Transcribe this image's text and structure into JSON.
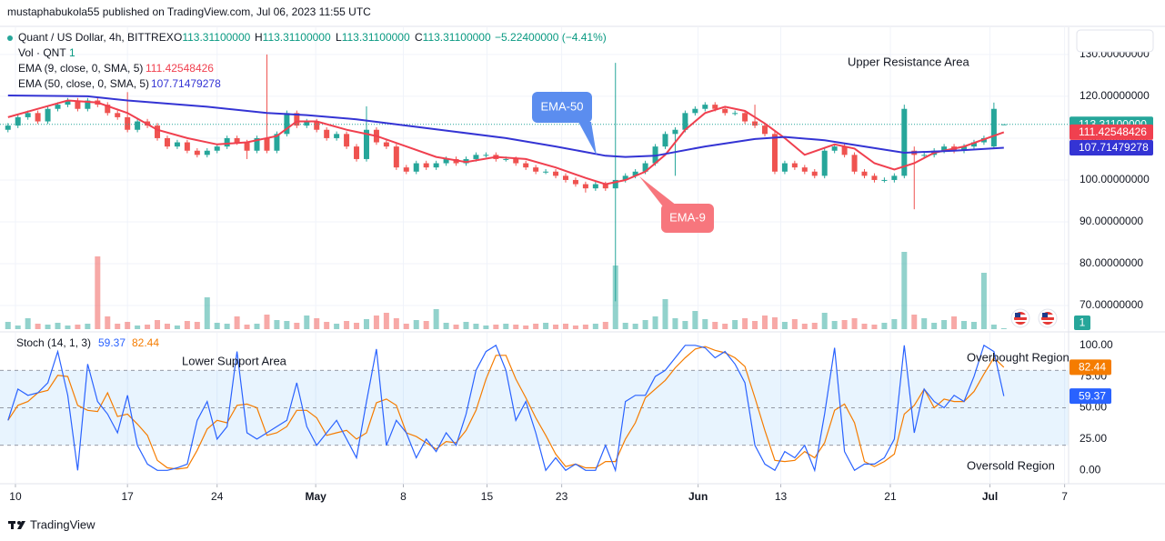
{
  "published": "mustaphabukola55 published on TradingView.com, Jul 06, 2023 11:55 UTC",
  "header": {
    "title": "Quant / US Dollar, 4h, BITTREX",
    "ohlc": [
      {
        "key": "O",
        "value": "113.31100000"
      },
      {
        "key": "H",
        "value": "113.31100000"
      },
      {
        "key": "L",
        "value": "113.31100000"
      },
      {
        "key": "C",
        "value": "113.31100000"
      }
    ],
    "change": "−5.22400000 (−4.41%)",
    "volume_label": "Vol · QNT"
  },
  "chart_data": {
    "type": "candlestick",
    "xlim": [
      -0.8,
      106.5
    ],
    "xticks": [
      {
        "value": 0.75,
        "label": "10"
      },
      {
        "value": 12.0,
        "label": "17"
      },
      {
        "value": 21.0,
        "label": "24"
      },
      {
        "value": 30.9,
        "label": "May"
      },
      {
        "value": 39.7,
        "label": "8"
      },
      {
        "value": 48.1,
        "label": "15"
      },
      {
        "value": 55.6,
        "label": "23"
      },
      {
        "value": 69.3,
        "label": "Jun"
      },
      {
        "value": 77.6,
        "label": "13"
      },
      {
        "value": 88.6,
        "label": "21"
      },
      {
        "value": 98.6,
        "label": "Jul"
      },
      {
        "value": 106.1,
        "label": "7"
      }
    ],
    "ylim": [
      64.35,
      136.5
    ],
    "yticks": [
      {
        "value": 130,
        "label": "130.00000000"
      },
      {
        "value": 120,
        "label": "120.00000000"
      },
      {
        "value": 110,
        "label": "110.00000000"
      },
      {
        "value": 100,
        "label": "100.00000000"
      },
      {
        "value": 90,
        "label": "90.00000000"
      },
      {
        "value": 80,
        "label": "80.00000000"
      },
      {
        "value": 70,
        "label": "70.00000000"
      }
    ],
    "grid": true,
    "up_color": "#26a69a",
    "down_color": "#ef5350",
    "last_price": {
      "value": 113.311,
      "label": "113.31100000"
    },
    "candles": [
      [
        112,
        113.6,
        111.4,
        113
      ],
      [
        113,
        115.6,
        112.4,
        115
      ],
      [
        115,
        116.6,
        114.4,
        116
      ],
      [
        116,
        116.6,
        113.4,
        114
      ],
      [
        114,
        117.6,
        113.4,
        117
      ],
      [
        117,
        118.6,
        116.4,
        118
      ],
      [
        118,
        119.6,
        117.4,
        119
      ],
      [
        119,
        119.6,
        116.4,
        117
      ],
      [
        117,
        119.6,
        116.4,
        119
      ],
      [
        119,
        119.6,
        117.4,
        118
      ],
      [
        118,
        118.6,
        115.4,
        116
      ],
      [
        116,
        116.6,
        114.4,
        115
      ],
      [
        115,
        121,
        111.4,
        112
      ],
      [
        112,
        114.6,
        111.4,
        114
      ],
      [
        114,
        114.6,
        112.4,
        113
      ],
      [
        113,
        113.6,
        109.4,
        110
      ],
      [
        110,
        110.6,
        107.4,
        108
      ],
      [
        108,
        109.6,
        107.4,
        109
      ],
      [
        109,
        109.6,
        106.4,
        107
      ],
      [
        107,
        107.6,
        105.4,
        106
      ],
      [
        106,
        107.6,
        105.4,
        107
      ],
      [
        107,
        108.6,
        106.4,
        108
      ],
      [
        108,
        110.6,
        107.4,
        110
      ],
      [
        110,
        110.6,
        108.4,
        109
      ],
      [
        109,
        109.6,
        105,
        107
      ],
      [
        107,
        110.6,
        106.4,
        110
      ],
      [
        110,
        130,
        106.4,
        107
      ],
      [
        107,
        111.6,
        106.4,
        111
      ],
      [
        111,
        116.6,
        110.4,
        116
      ],
      [
        116,
        116.6,
        112.4,
        113
      ],
      [
        113,
        114.6,
        112.4,
        114
      ],
      [
        114,
        114.6,
        111.4,
        112
      ],
      [
        112,
        112.6,
        109.4,
        110
      ],
      [
        110,
        111.6,
        109.4,
        111
      ],
      [
        111,
        111.6,
        107.4,
        108
      ],
      [
        108,
        108.6,
        104.4,
        105
      ],
      [
        105,
        117.6,
        104.4,
        112
      ],
      [
        112,
        112.6,
        108.4,
        109
      ],
      [
        109,
        109.6,
        107.4,
        108
      ],
      [
        108,
        108.6,
        102.4,
        103
      ],
      [
        103,
        103.6,
        101.4,
        102
      ],
      [
        102,
        104.6,
        101.4,
        104
      ],
      [
        104,
        104.6,
        102.4,
        103
      ],
      [
        103,
        104.6,
        102.4,
        104
      ],
      [
        104,
        105.6,
        103.4,
        105
      ],
      [
        105,
        105.6,
        103.4,
        104
      ],
      [
        104,
        105.6,
        103.4,
        105
      ],
      [
        105,
        106.6,
        104.4,
        106
      ],
      [
        106,
        106.6,
        105.4,
        106
      ],
      [
        106,
        106.6,
        104.4,
        105
      ],
      [
        105,
        105.6,
        104.4,
        105
      ],
      [
        105,
        105.6,
        103.4,
        104
      ],
      [
        104,
        104.6,
        102.4,
        103
      ],
      [
        103,
        103.6,
        101.4,
        102
      ],
      [
        102,
        102.6,
        101.4,
        102
      ],
      [
        102,
        102.6,
        100.4,
        101
      ],
      [
        101,
        101.6,
        99.4,
        100
      ],
      [
        100,
        100.6,
        98.4,
        99
      ],
      [
        99,
        99.6,
        97,
        98
      ],
      [
        98,
        99.6,
        97.4,
        99
      ],
      [
        99,
        99.6,
        97.4,
        98
      ],
      [
        98,
        128,
        71,
        100
      ],
      [
        100,
        101.6,
        99.4,
        101
      ],
      [
        101,
        102.6,
        100.4,
        102
      ],
      [
        102,
        104.6,
        101.4,
        104
      ],
      [
        104,
        108.6,
        103.4,
        108
      ],
      [
        108,
        111.6,
        107.4,
        111
      ],
      [
        111,
        112.6,
        101,
        112
      ],
      [
        112,
        116.6,
        111.4,
        116
      ],
      [
        116,
        117.6,
        115.4,
        117
      ],
      [
        117,
        118.6,
        116.4,
        118
      ],
      [
        118,
        118.6,
        116.4,
        117
      ],
      [
        117,
        117.6,
        115.4,
        116
      ],
      [
        116,
        116.6,
        115.4,
        116
      ],
      [
        116,
        116.6,
        113.4,
        114
      ],
      [
        114,
        118,
        112.4,
        113
      ],
      [
        113,
        113.6,
        110.4,
        111
      ],
      [
        111,
        111.6,
        101.4,
        102
      ],
      [
        102,
        104.6,
        101.4,
        104
      ],
      [
        104,
        104.6,
        102.4,
        103
      ],
      [
        103,
        103.6,
        101.4,
        102
      ],
      [
        102,
        102.6,
        100.4,
        101
      ],
      [
        101,
        107.6,
        100.4,
        107
      ],
      [
        107,
        108.6,
        106.4,
        108
      ],
      [
        108,
        108.6,
        105.4,
        106
      ],
      [
        106,
        106.6,
        101.4,
        102
      ],
      [
        102,
        102.6,
        100.4,
        101
      ],
      [
        101,
        101.6,
        99.4,
        100
      ],
      [
        100,
        100.6,
        99.4,
        100
      ],
      [
        100,
        101.6,
        99.4,
        101
      ],
      [
        101,
        118,
        100.4,
        117
      ],
      [
        107,
        108,
        93,
        106
      ],
      [
        106,
        106.6,
        105.4,
        106
      ],
      [
        106,
        107.6,
        105.4,
        107
      ],
      [
        107,
        108.6,
        106.4,
        108
      ],
      [
        108,
        108.6,
        106.4,
        107
      ],
      [
        107,
        108.6,
        106.4,
        108
      ],
      [
        108,
        109.6,
        107.4,
        109
      ],
      [
        109,
        110.6,
        108.4,
        110
      ],
      [
        108,
        118.5,
        107.5,
        117
      ],
      [
        113.311,
        113.311,
        113.311,
        113.311
      ]
    ],
    "volume": {
      "ylim": [
        0,
        100
      ],
      "values": [
        8,
        4,
        12,
        6,
        5,
        7,
        4,
        5,
        6,
        80,
        14,
        6,
        8,
        4,
        5,
        10,
        6,
        4,
        9,
        8,
        35,
        7,
        6,
        14,
        5,
        6,
        16,
        10,
        9,
        7,
        15,
        12,
        8,
        6,
        9,
        7,
        11,
        15,
        18,
        12,
        6,
        10,
        9,
        22,
        7,
        5,
        8,
        6,
        4,
        5,
        6,
        5,
        4,
        6,
        7,
        5,
        6,
        4,
        5,
        6,
        8,
        70,
        7,
        6,
        10,
        14,
        33,
        12,
        9,
        20,
        11,
        8,
        6,
        10,
        12,
        9,
        15,
        13,
        8,
        11,
        6,
        7,
        18,
        9,
        10,
        12,
        6,
        5,
        7,
        11,
        85,
        16,
        12,
        7,
        10,
        14,
        9,
        8,
        62,
        5,
        1
      ]
    },
    "series": [
      {
        "name": "EMA (9, close, 0, SMA, 5)",
        "color": "#f0404f",
        "x": [
          0,
          3,
          6,
          9,
          12,
          15,
          18,
          21,
          24,
          27,
          29,
          31,
          34,
          37,
          40,
          43,
          46,
          49,
          52,
          55,
          58,
          60,
          62,
          64,
          66,
          68,
          70,
          72,
          74,
          76,
          78,
          80,
          83,
          85,
          87,
          89,
          91,
          93,
          96,
          100
        ],
        "values": [
          115,
          117,
          119,
          118.5,
          116,
          112,
          110,
          108.5,
          109,
          110.5,
          114,
          114,
          112,
          110.5,
          108,
          105.5,
          104.3,
          105.5,
          105,
          103,
          100.5,
          99,
          100,
          102,
          106,
          112,
          116,
          117.5,
          116.5,
          113.5,
          110,
          106,
          108.5,
          107.5,
          104,
          102.5,
          104,
          106.5,
          108,
          111.42548426
        ]
      },
      {
        "name": "EMA (50, close, 0, SMA, 5)",
        "color": "#3434d4",
        "x": [
          0,
          8,
          12,
          20,
          26,
          30,
          35,
          40,
          45,
          50,
          55,
          60,
          62,
          65,
          70,
          75,
          78,
          82,
          86,
          90,
          95,
          100
        ],
        "values": [
          120.2,
          120,
          119,
          117.5,
          116,
          115.5,
          114.5,
          113,
          111.5,
          110,
          108,
          105.8,
          105.5,
          105.8,
          108,
          109.8,
          110.3,
          109.5,
          108,
          106.5,
          107,
          107.71479278
        ]
      }
    ],
    "annotations": {
      "upper": "Upper Resistance Area",
      "ema50": "EMA-50",
      "ema9": "EMA-9",
      "lower": "Lower Support Area",
      "overbought": "Overbought Region",
      "oversold": "Oversold Region"
    },
    "stoch": {
      "name": "Stoch (14, 1, 3)",
      "ylim": [
        -10,
        110
      ],
      "yticks": [
        {
          "value": 100,
          "label": "100.00"
        },
        {
          "value": 75,
          "label": "75.00"
        },
        {
          "value": 50,
          "label": "50.00"
        },
        {
          "value": 25,
          "label": "25.00"
        },
        {
          "value": 0,
          "label": "0.00"
        }
      ],
      "band": [
        20,
        80
      ],
      "levels": [
        80,
        50,
        20
      ],
      "k": {
        "color": "#2962ff",
        "values": [
          40,
          65,
          60,
          62,
          70,
          95,
          60,
          0,
          85,
          55,
          45,
          30,
          60,
          20,
          5,
          0,
          0,
          2,
          5,
          40,
          55,
          25,
          35,
          95,
          30,
          25,
          30,
          35,
          40,
          70,
          35,
          20,
          30,
          40,
          25,
          10,
          55,
          97,
          20,
          40,
          30,
          10,
          25,
          15,
          30,
          20,
          45,
          80,
          95,
          100,
          80,
          40,
          55,
          30,
          0,
          10,
          0,
          5,
          0,
          0,
          20,
          0,
          55,
          60,
          60,
          75,
          80,
          90,
          100,
          100,
          98,
          90,
          95,
          85,
          70,
          20,
          5,
          0,
          15,
          10,
          20,
          0,
          45,
          98,
          15,
          0,
          5,
          5,
          10,
          25,
          100,
          30,
          65,
          55,
          50,
          60,
          55,
          75,
          100,
          95,
          59.37
        ]
      },
      "d": {
        "color": "#f57c00",
        "values": [
          40,
          52,
          55,
          62,
          64,
          76,
          75,
          52,
          48,
          47,
          62,
          43,
          45,
          37,
          28,
          8,
          2,
          1,
          2,
          16,
          33,
          40,
          38,
          52,
          53,
          50,
          28,
          30,
          35,
          48,
          48,
          42,
          28,
          30,
          32,
          25,
          30,
          54,
          57,
          52,
          30,
          27,
          22,
          17,
          23,
          22,
          32,
          48,
          73,
          92,
          92,
          73,
          58,
          42,
          28,
          13,
          3,
          5,
          2,
          2,
          7,
          7,
          25,
          38,
          58,
          65,
          72,
          82,
          90,
          97,
          99,
          96,
          94,
          90,
          83,
          58,
          32,
          8,
          7,
          8,
          15,
          10,
          22,
          48,
          53,
          38,
          7,
          3,
          7,
          13,
          45,
          52,
          65,
          50,
          57,
          55,
          55,
          63,
          77,
          90,
          82.44
        ]
      }
    },
    "brand": "TradingView"
  }
}
